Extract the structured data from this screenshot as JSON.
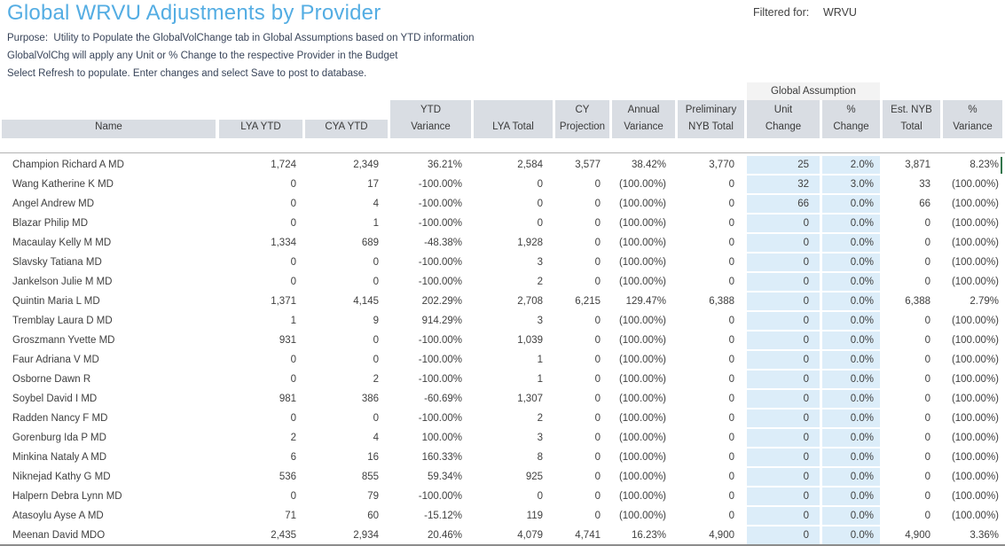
{
  "header": {
    "title": "Global WRVU Adjustments by Provider",
    "filtered_for_label": "Filtered for:",
    "filtered_for_value": "WRVU"
  },
  "purpose_lines": [
    "Purpose:  Utility to Populate the GlobalVolChange tab in Global Assumptions based on YTD information",
    "GlobalVolChg will apply any Unit or % Change to the respective Provider in the Budget",
    "Select Refresh to populate. Enter changes and select Save to post to database."
  ],
  "table": {
    "group_header": "Global Assumption",
    "columns": [
      {
        "id": "name",
        "lines": [
          "Name"
        ]
      },
      {
        "id": "lya_ytd",
        "lines": [
          "LYA YTD"
        ]
      },
      {
        "id": "cya_ytd",
        "lines": [
          "CYA YTD"
        ]
      },
      {
        "id": "ytd_variance",
        "lines": [
          "YTD",
          "Variance"
        ]
      },
      {
        "id": "lya_total",
        "lines": [
          "LYA Total"
        ]
      },
      {
        "id": "cy_projection",
        "lines": [
          "CY",
          "Projection"
        ]
      },
      {
        "id": "annual_variance",
        "lines": [
          "Annual",
          "Variance"
        ]
      },
      {
        "id": "preliminary_nyb_total",
        "lines": [
          "Preliminary",
          "NYB Total"
        ]
      },
      {
        "id": "unit_change",
        "lines": [
          "Unit",
          "Change"
        ]
      },
      {
        "id": "pct_change",
        "lines": [
          "%",
          "Change"
        ]
      },
      {
        "id": "est_nyb_total",
        "lines": [
          "Est. NYB",
          "Total"
        ]
      },
      {
        "id": "pct_variance",
        "lines": [
          "%",
          "Variance"
        ]
      }
    ],
    "rows": [
      [
        "Champion Richard A MD",
        "1,724",
        "2,349",
        "36.21%",
        "2,584",
        "3,577",
        "38.42%",
        "3,770",
        "25",
        "2.0%",
        "3,871",
        "8.23%"
      ],
      [
        "Wang Katherine K MD",
        "0",
        "17",
        "-100.00%",
        "0",
        "0",
        "(100.00%)",
        "0",
        "32",
        "3.0%",
        "33",
        "(100.00%)"
      ],
      [
        "Angel Andrew MD",
        "0",
        "4",
        "-100.00%",
        "0",
        "0",
        "(100.00%)",
        "0",
        "66",
        "0.0%",
        "66",
        "(100.00%)"
      ],
      [
        "Blazar Philip MD",
        "0",
        "1",
        "-100.00%",
        "0",
        "0",
        "(100.00%)",
        "0",
        "0",
        "0.0%",
        "0",
        "(100.00%)"
      ],
      [
        "Macaulay Kelly M MD",
        "1,334",
        "689",
        "-48.38%",
        "1,928",
        "0",
        "(100.00%)",
        "0",
        "0",
        "0.0%",
        "0",
        "(100.00%)"
      ],
      [
        "Slavsky Tatiana MD",
        "0",
        "0",
        "-100.00%",
        "3",
        "0",
        "(100.00%)",
        "0",
        "0",
        "0.0%",
        "0",
        "(100.00%)"
      ],
      [
        "Jankelson Julie M MD",
        "0",
        "0",
        "-100.00%",
        "2",
        "0",
        "(100.00%)",
        "0",
        "0",
        "0.0%",
        "0",
        "(100.00%)"
      ],
      [
        "Quintin Maria L MD",
        "1,371",
        "4,145",
        "202.29%",
        "2,708",
        "6,215",
        "129.47%",
        "6,388",
        "0",
        "0.0%",
        "6,388",
        "2.79%"
      ],
      [
        "Tremblay Laura D MD",
        "1",
        "9",
        "914.29%",
        "3",
        "0",
        "(100.00%)",
        "0",
        "0",
        "0.0%",
        "0",
        "(100.00%)"
      ],
      [
        "Groszmann Yvette MD",
        "931",
        "0",
        "-100.00%",
        "1,039",
        "0",
        "(100.00%)",
        "0",
        "0",
        "0.0%",
        "0",
        "(100.00%)"
      ],
      [
        "Faur Adriana V MD",
        "0",
        "0",
        "-100.00%",
        "1",
        "0",
        "(100.00%)",
        "0",
        "0",
        "0.0%",
        "0",
        "(100.00%)"
      ],
      [
        "Osborne Dawn R",
        "0",
        "2",
        "-100.00%",
        "1",
        "0",
        "(100.00%)",
        "0",
        "0",
        "0.0%",
        "0",
        "(100.00%)"
      ],
      [
        "Soybel David I MD",
        "981",
        "386",
        "-60.69%",
        "1,307",
        "0",
        "(100.00%)",
        "0",
        "0",
        "0.0%",
        "0",
        "(100.00%)"
      ],
      [
        "Radden Nancy F MD",
        "0",
        "0",
        "-100.00%",
        "2",
        "0",
        "(100.00%)",
        "0",
        "0",
        "0.0%",
        "0",
        "(100.00%)"
      ],
      [
        "Gorenburg Ida P MD",
        "2",
        "4",
        "100.00%",
        "3",
        "0",
        "(100.00%)",
        "0",
        "0",
        "0.0%",
        "0",
        "(100.00%)"
      ],
      [
        "Minkina Nataly A MD",
        "6",
        "16",
        "160.33%",
        "8",
        "0",
        "(100.00%)",
        "0",
        "0",
        "0.0%",
        "0",
        "(100.00%)"
      ],
      [
        "Niknejad Kathy G MD",
        "536",
        "855",
        "59.34%",
        "925",
        "0",
        "(100.00%)",
        "0",
        "0",
        "0.0%",
        "0",
        "(100.00%)"
      ],
      [
        "Halpern Debra Lynn MD",
        "0",
        "79",
        "-100.00%",
        "0",
        "0",
        "(100.00%)",
        "0",
        "0",
        "0.0%",
        "0",
        "(100.00%)"
      ],
      [
        "Atasoylu Ayse A MD",
        "71",
        "60",
        "-15.12%",
        "119",
        "0",
        "(100.00%)",
        "0",
        "0",
        "0.0%",
        "0",
        "(100.00%)"
      ],
      [
        "Meenan David MDO",
        "2,435",
        "2,934",
        "20.46%",
        "4,079",
        "4,741",
        "16.23%",
        "4,900",
        "0",
        "0.0%",
        "4,900",
        "3.36%"
      ]
    ]
  },
  "colors": {
    "title": "#54ade3",
    "header_fill": "#d9dde3",
    "group_fill": "#f3f3f3",
    "editable_fill": "#dcedf9",
    "text": "#404040",
    "purpose_text": "#39455a"
  }
}
